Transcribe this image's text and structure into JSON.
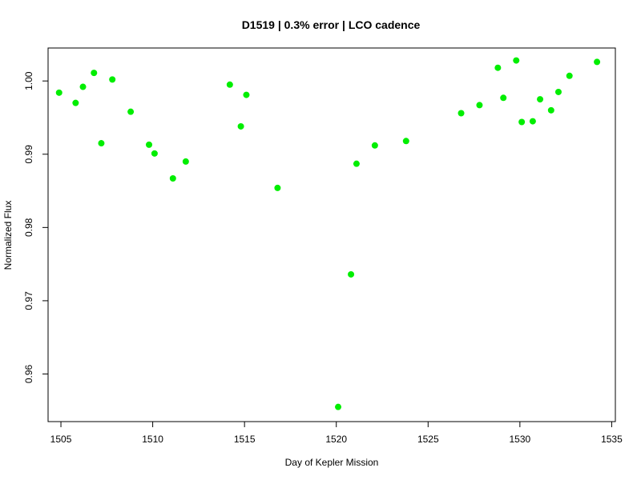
{
  "chart_data": {
    "type": "scatter",
    "title": "D1519 | 0.3% error | LCO cadence",
    "xlabel": "Day of Kepler Mission",
    "ylabel": "Normalized Flux",
    "xlim": [
      1504.3,
      1535.2
    ],
    "ylim": [
      0.9535,
      1.0045
    ],
    "x_ticks": [
      1505,
      1510,
      1515,
      1520,
      1525,
      1530,
      1535
    ],
    "y_ticks": [
      0.96,
      0.97,
      0.98,
      0.99,
      1.0
    ],
    "x_tick_labels": [
      "1505",
      "1510",
      "1515",
      "1520",
      "1525",
      "1530",
      "1535"
    ],
    "y_tick_labels": [
      "0.96",
      "0.97",
      "0.98",
      "0.99",
      "1.00"
    ],
    "grid": false,
    "marker_color": "#00ee00",
    "series": [
      {
        "x": [
          1504.9,
          1505.8,
          1506.2,
          1506.8,
          1507.2,
          1507.8,
          1508.8,
          1509.8,
          1510.1,
          1511.1,
          1511.8,
          1514.2,
          1514.8,
          1515.1,
          1516.8,
          1520.1,
          1520.8,
          1521.1,
          1522.1,
          1523.8,
          1526.8,
          1527.8,
          1528.8,
          1529.1,
          1529.8,
          1530.1,
          1530.7,
          1531.1,
          1531.7,
          1532.1,
          1532.7,
          1534.2
        ],
        "y": [
          0.9984,
          0.997,
          0.9992,
          1.0011,
          0.9915,
          1.0002,
          0.9958,
          0.9913,
          0.9901,
          0.9867,
          0.989,
          0.9995,
          0.9938,
          0.9981,
          0.9854,
          0.9555,
          0.9736,
          0.9887,
          0.9912,
          0.9918,
          0.9956,
          0.9967,
          1.0018,
          0.9977,
          1.0028,
          0.9944,
          0.9945,
          0.9975,
          0.996,
          0.9985,
          1.0007,
          1.0026
        ]
      }
    ]
  }
}
